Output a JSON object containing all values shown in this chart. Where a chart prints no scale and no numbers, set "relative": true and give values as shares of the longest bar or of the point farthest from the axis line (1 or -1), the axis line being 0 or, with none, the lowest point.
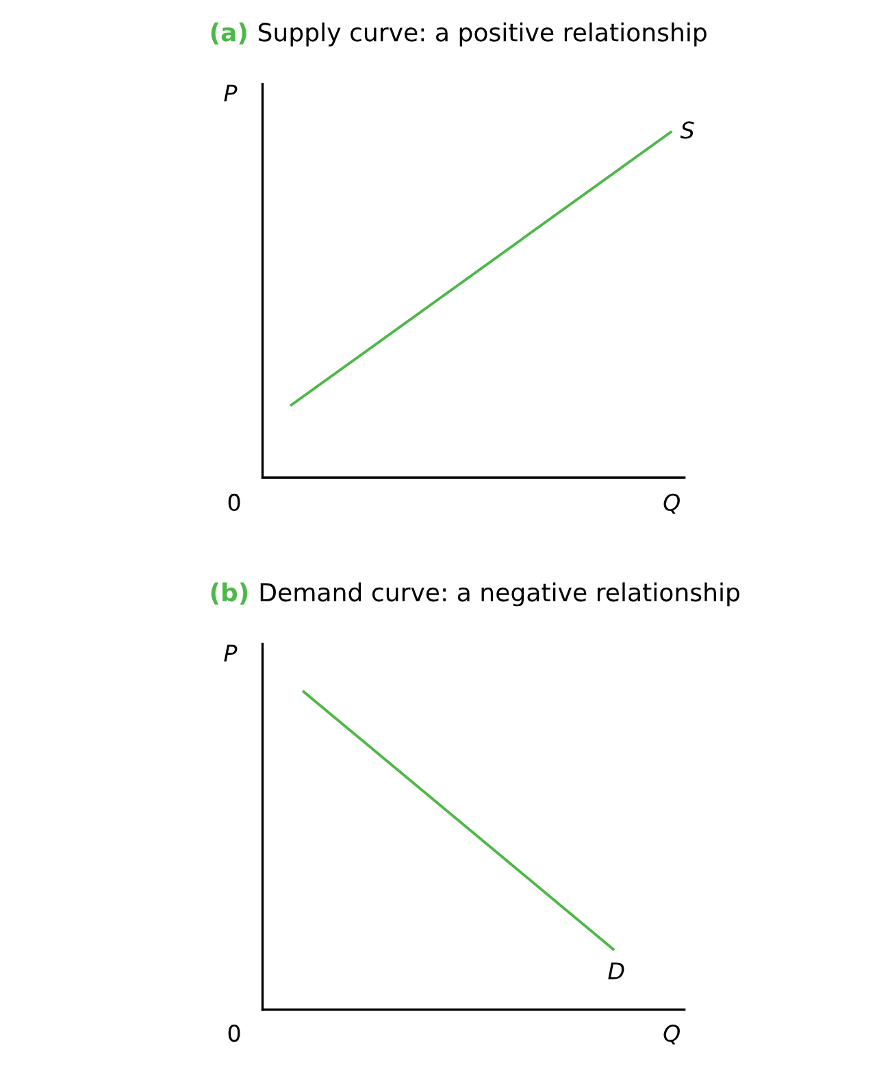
{
  "chart_data": [
    {
      "type": "line",
      "title": "(a) Supply curve: a positive relationship",
      "xlabel": "Q",
      "ylabel": "P",
      "relative": true,
      "categories": [
        null,
        null
      ],
      "series": [
        {
          "name": "S",
          "color": "#4db848",
          "values": [
            0.21,
            1
          ]
        }
      ],
      "annotations": [
        "0"
      ]
    },
    {
      "type": "line",
      "title": "(b) Demand curve: a negative relationship",
      "xlabel": "Q",
      "ylabel": "P",
      "relative": true,
      "categories": [
        null,
        null
      ],
      "series": [
        {
          "name": "D",
          "color": "#4db848",
          "values": [
            1,
            0.19
          ]
        }
      ],
      "annotations": [
        "0"
      ]
    }
  ]
}
